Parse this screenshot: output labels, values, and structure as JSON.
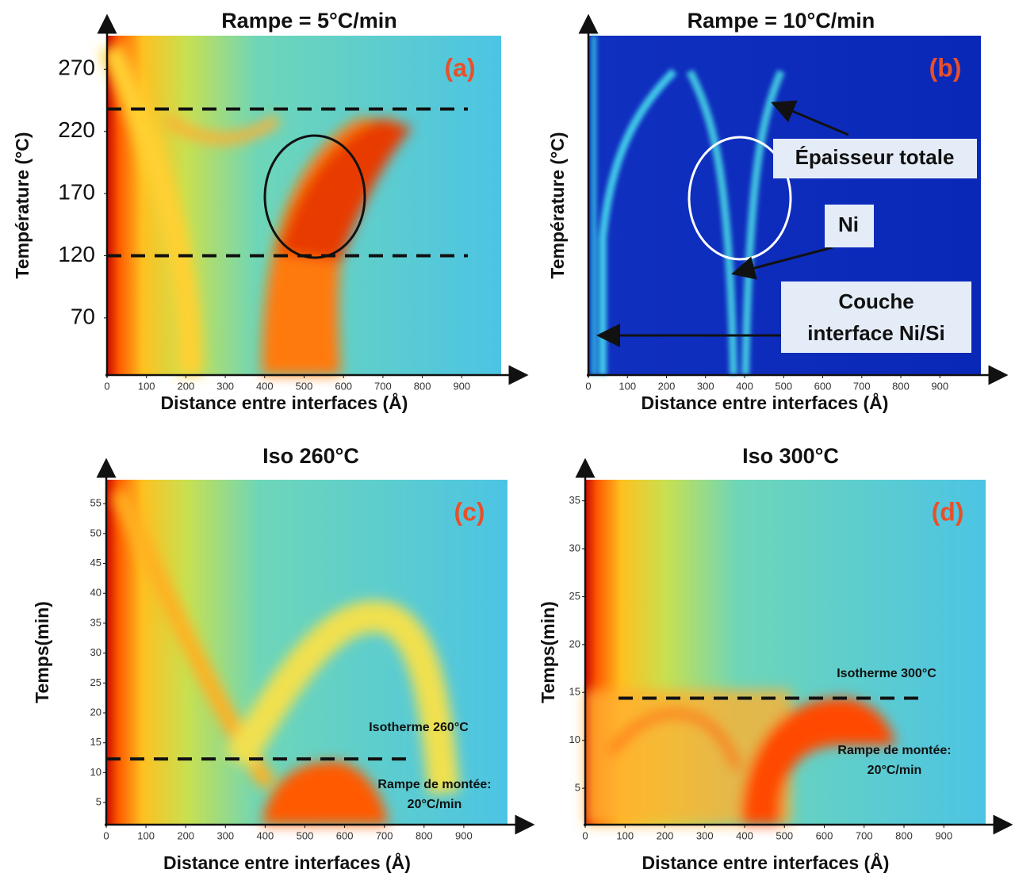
{
  "chart_data": [
    {
      "type": "heatmap",
      "title": "Rampe = 5°C/min",
      "panel_label": "(a)",
      "xlabel": "Distance entre interfaces (Å)",
      "ylabel": "Température (°C)",
      "xlim": [
        0,
        1000
      ],
      "xticks": [
        0,
        100,
        200,
        300,
        400,
        500,
        600,
        700,
        800,
        900
      ],
      "ylim": [
        24,
        297
      ],
      "yticks": [
        70,
        120,
        170,
        220,
        270
      ],
      "reference_lines": [
        238,
        120
      ],
      "annotations": []
    },
    {
      "type": "heatmap",
      "title": "Rampe = 10°C/min",
      "panel_label": "(b)",
      "xlabel": "Distance entre interfaces (Å)",
      "ylabel": "Température (°C)",
      "xlim": [
        0,
        1005
      ],
      "xticks": [
        0,
        100,
        200,
        300,
        400,
        500,
        600,
        700,
        800,
        900
      ],
      "annotations": [
        [
          "Épaisseur totale"
        ],
        [
          "Ni"
        ],
        [
          "Couche",
          "interface Ni/Si"
        ]
      ]
    },
    {
      "type": "heatmap",
      "title": "Iso 260°C",
      "panel_label": "(c)",
      "xlabel": "Distance entre interfaces (Å)",
      "ylabel": "Temps(min)",
      "xlim": [
        0,
        1010
      ],
      "xticks": [
        0,
        100,
        200,
        300,
        400,
        500,
        600,
        700,
        800,
        900
      ],
      "ylim": [
        1.3,
        59
      ],
      "yticks": [
        5,
        10,
        15,
        20,
        25,
        30,
        35,
        40,
        45,
        50,
        55
      ],
      "reference_lines": [
        12.3
      ],
      "annotations": [
        [
          "Isotherme 260°C"
        ],
        [
          "Rampe de montée:",
          "20°C/min"
        ]
      ]
    },
    {
      "type": "heatmap",
      "title": "Iso 300°C",
      "panel_label": "(d)",
      "xlabel": "Distance entre interfaces (Å)",
      "ylabel": "Temps(min)",
      "xlim": [
        0,
        1005
      ],
      "xticks": [
        0,
        100,
        200,
        300,
        400,
        500,
        600,
        700,
        800,
        900
      ],
      "ylim": [
        1.2,
        37.2
      ],
      "yticks": [
        5,
        10,
        15,
        20,
        25,
        30,
        35
      ],
      "reference_lines": [
        14.4
      ],
      "annotations": [
        [
          "Isotherme 300°C"
        ],
        [
          "Rampe de montée:",
          "20°C/min"
        ]
      ]
    }
  ]
}
